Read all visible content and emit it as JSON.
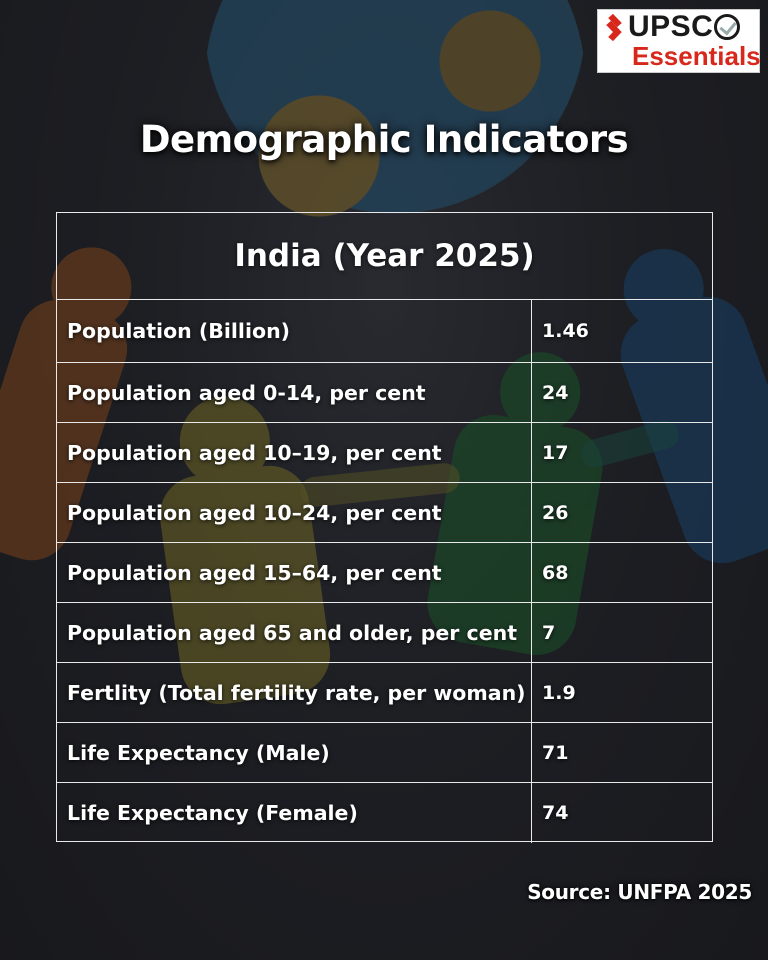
{
  "logo": {
    "line1": "UPSC",
    "line2": "Essentials",
    "brand_red": "#d8281c"
  },
  "title": "Demographic Indicators",
  "table": {
    "header": "India (Year 2025)",
    "rows": [
      {
        "label": "Population (Billion)",
        "value": "1.46"
      },
      {
        "label": "Population aged 0-14, per cent",
        "value": "24"
      },
      {
        "label": "Population aged 10–19, per cent",
        "value": "17"
      },
      {
        "label": "Population aged 10–24, per cent",
        "value": "26"
      },
      {
        "label": "Population aged 15–64, per cent",
        "value": "68"
      },
      {
        "label": "Population aged 65 and older, per cent",
        "value": "7"
      },
      {
        "label": "Fertlity (Total fertility rate, per woman)",
        "value": "1.9"
      },
      {
        "label": "Life Expectancy (Male)",
        "value": "71"
      },
      {
        "label": "Life Expectancy (Female)",
        "value": "74"
      }
    ]
  },
  "source": "Source: UNFPA 2025"
}
